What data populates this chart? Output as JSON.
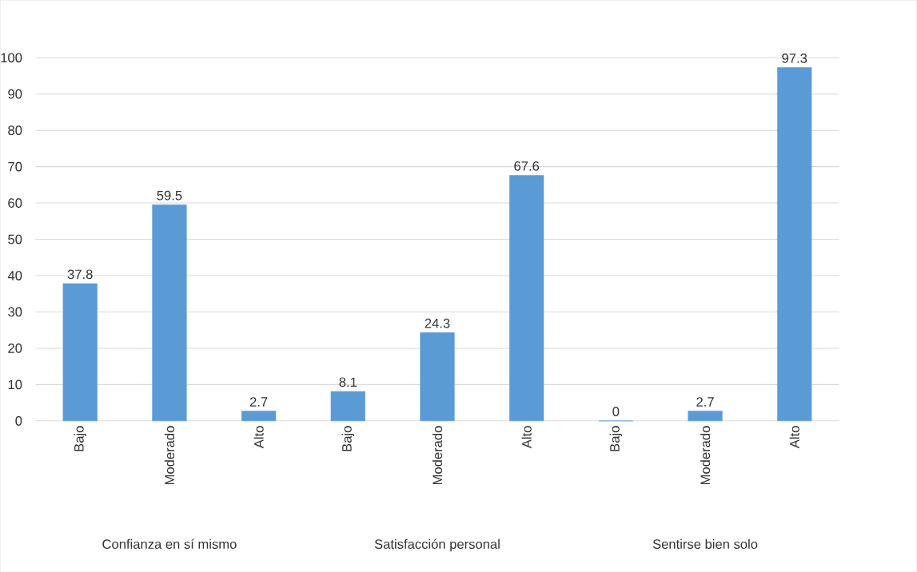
{
  "chart_data": {
    "type": "bar",
    "categories": [
      "Bajo",
      "Moderado",
      "Alto",
      "Bajo",
      "Moderado",
      "Alto",
      "Bajo",
      "Moderado",
      "Alto"
    ],
    "values": [
      37.8,
      59.5,
      2.7,
      8.1,
      24.3,
      67.6,
      0,
      2.7,
      97.3
    ],
    "color": "#5b9bd5",
    "ylim": [
      0,
      100
    ],
    "yticks": [
      0,
      10,
      20,
      30,
      40,
      50,
      60,
      70,
      80,
      90,
      100
    ],
    "grid": "y",
    "data_labels": true,
    "annotations": [
      "Confianza en sí mismo",
      "Satisfacción personal",
      "Sentirse bien solo"
    ]
  }
}
